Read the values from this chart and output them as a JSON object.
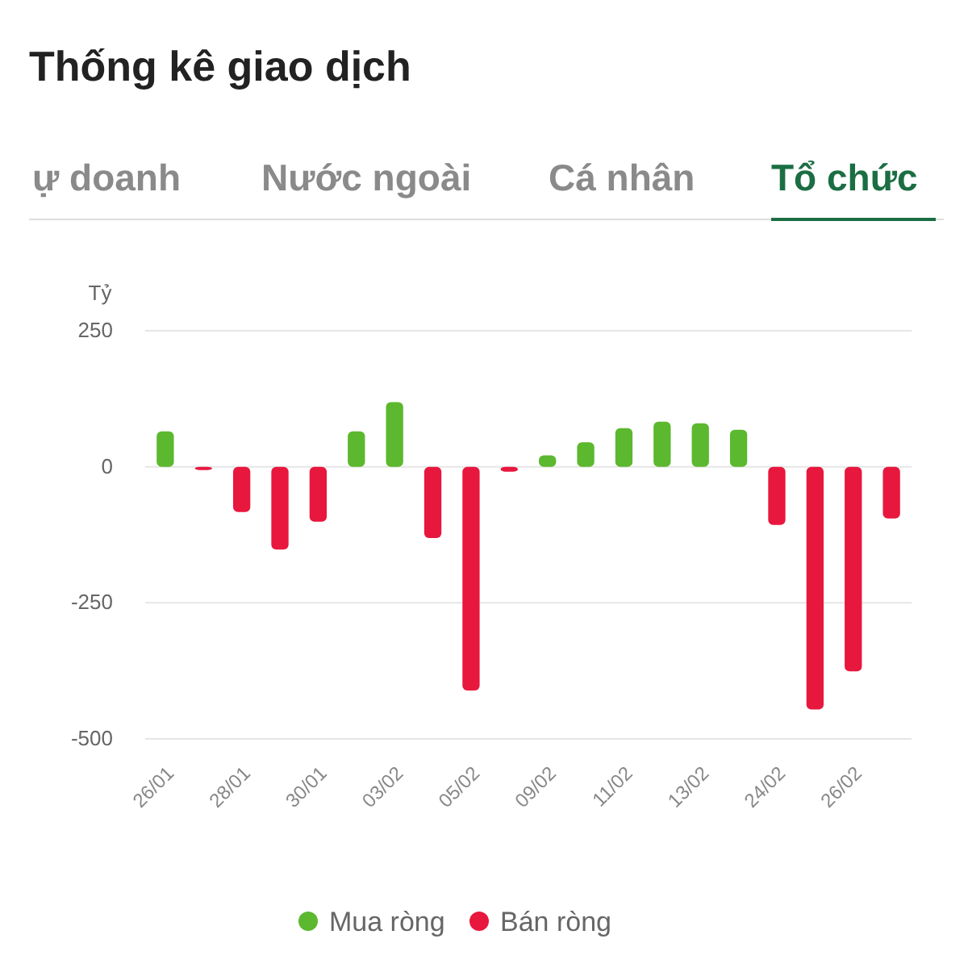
{
  "chart_data": {
    "type": "bar",
    "title": "Thống kê giao dịch",
    "ylabel": "Tỷ",
    "annotations": [
      "ự doanh",
      "Nước ngoài",
      "Cá nhân",
      "Tổ chức"
    ],
    "categories": [
      "26/01",
      null,
      "28/01",
      null,
      "30/01",
      null,
      "03/02",
      null,
      "05/02",
      null,
      "09/02",
      null,
      "11/02",
      null,
      "13/02",
      null,
      "24/02",
      null,
      "26/02",
      null
    ],
    "series": [
      {
        "name": "Mua ròng",
        "color": "#5cb82e",
        "values": [
          65,
          null,
          null,
          null,
          null,
          65,
          119,
          null,
          null,
          null,
          21,
          45,
          71,
          83,
          80,
          68,
          null,
          null,
          null,
          null
        ]
      },
      {
        "name": "Bán ròng",
        "color": "#e8173e",
        "values": [
          null,
          -6,
          -83,
          -152,
          -101,
          null,
          null,
          -131,
          -411,
          -9,
          null,
          null,
          null,
          null,
          null,
          null,
          -107,
          -446,
          -376,
          -95
        ]
      }
    ],
    "ylim": [
      -500,
      250
    ],
    "yticks": [
      -500,
      -250,
      0,
      250
    ],
    "grid": "y",
    "legend": "bottom"
  }
}
